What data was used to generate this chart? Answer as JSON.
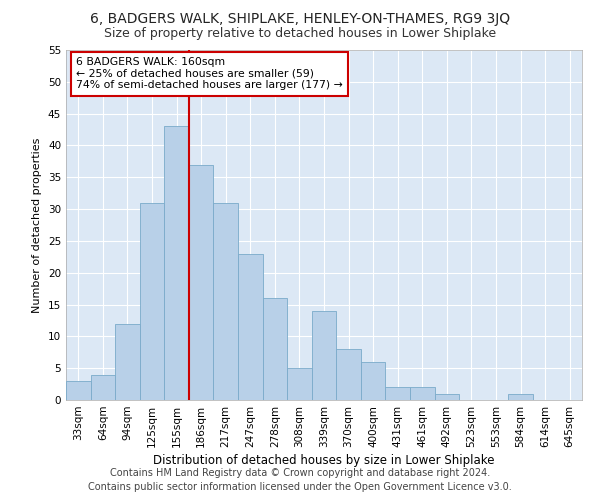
{
  "title": "6, BADGERS WALK, SHIPLAKE, HENLEY-ON-THAMES, RG9 3JQ",
  "subtitle": "Size of property relative to detached houses in Lower Shiplake",
  "xlabel": "Distribution of detached houses by size in Lower Shiplake",
  "ylabel": "Number of detached properties",
  "categories": [
    "33sqm",
    "64sqm",
    "94sqm",
    "125sqm",
    "155sqm",
    "186sqm",
    "217sqm",
    "247sqm",
    "278sqm",
    "308sqm",
    "339sqm",
    "370sqm",
    "400sqm",
    "431sqm",
    "461sqm",
    "492sqm",
    "523sqm",
    "553sqm",
    "584sqm",
    "614sqm",
    "645sqm"
  ],
  "values": [
    3,
    4,
    12,
    31,
    43,
    37,
    31,
    23,
    16,
    5,
    14,
    8,
    6,
    2,
    2,
    1,
    0,
    0,
    1,
    0,
    0
  ],
  "bar_color": "#b8d0e8",
  "bar_edge_color": "#7aaaca",
  "vline_x": 4.5,
  "vline_color": "#cc0000",
  "annotation_text": "6 BADGERS WALK: 160sqm\n← 25% of detached houses are smaller (59)\n74% of semi-detached houses are larger (177) →",
  "annotation_box_color": "#ffffff",
  "annotation_box_edge": "#cc0000",
  "ylim": [
    0,
    55
  ],
  "yticks": [
    0,
    5,
    10,
    15,
    20,
    25,
    30,
    35,
    40,
    45,
    50,
    55
  ],
  "footer": "Contains HM Land Registry data © Crown copyright and database right 2024.\nContains public sector information licensed under the Open Government Licence v3.0.",
  "bg_color": "#dce8f5",
  "fig_bg_color": "#ffffff",
  "grid_color": "#ffffff",
  "title_fontsize": 10,
  "subtitle_fontsize": 9,
  "xlabel_fontsize": 8.5,
  "ylabel_fontsize": 8,
  "footer_fontsize": 7,
  "tick_fontsize": 7.5
}
